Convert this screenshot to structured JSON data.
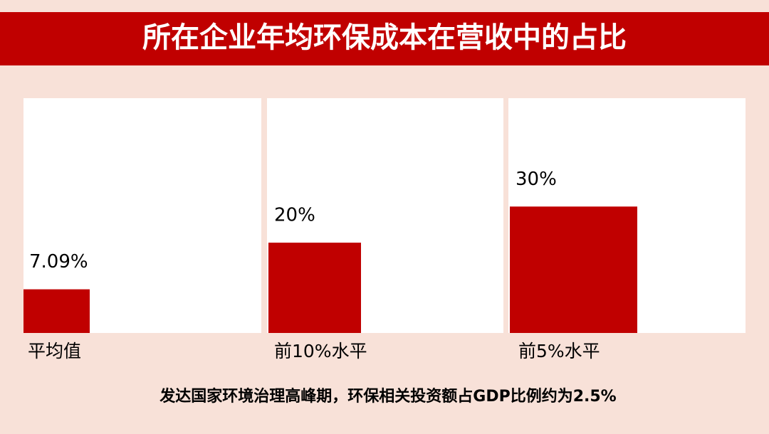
{
  "chart_data": {
    "type": "bar",
    "title": "所在企业年均环保成本在营收中的占比",
    "categories": [
      "平均值",
      "前10%水平",
      "前5%水平"
    ],
    "values": [
      7.09,
      20,
      30
    ],
    "value_labels": [
      "7.09%",
      "20%",
      "30%"
    ],
    "color": "#c00000",
    "ylim": [
      -5,
      60
    ],
    "note": "发达国家环境治理高峰期，环保相关投资额占GDP比例约为2.5%"
  }
}
